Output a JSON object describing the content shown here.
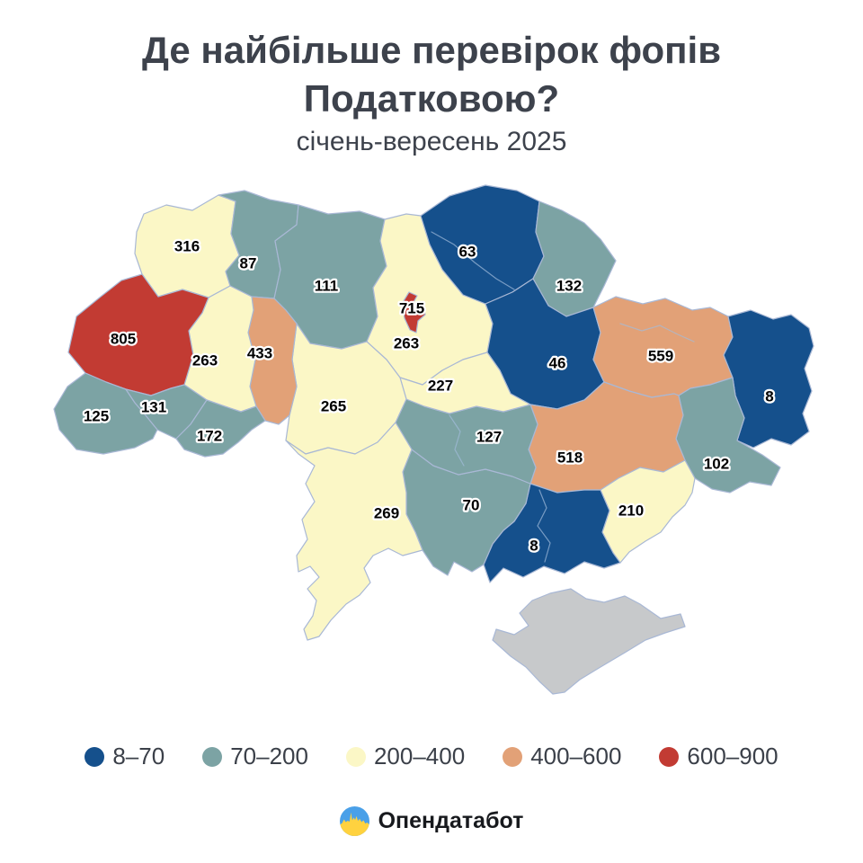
{
  "header": {
    "title_line1": "Де найбільше перевірок фопів",
    "title_line2": "Податковою?",
    "subtitle": "січень-вересень 2025"
  },
  "chart_data": {
    "type": "choropleth",
    "title": "Де найбільше перевірок фопів Податковою?",
    "subtitle": "січень-вересень 2025",
    "legend_position": "bottom",
    "bins": [
      {
        "label": "8–70",
        "color": "#15508C"
      },
      {
        "label": "70–200",
        "color": "#7CA3A4"
      },
      {
        "label": "200–400",
        "color": "#FBF7C6"
      },
      {
        "label": "400–600",
        "color": "#E2A177"
      },
      {
        "label": "600–900",
        "color": "#C23B33"
      }
    ],
    "no_data_color": "#C7C9CB",
    "regions": [
      {
        "id": "volyn",
        "value": 316,
        "bin": "200–400"
      },
      {
        "id": "rivne",
        "value": 87,
        "bin": "70–200"
      },
      {
        "id": "zhytomyr",
        "value": 111,
        "bin": "70–200"
      },
      {
        "id": "kyiv-oblast",
        "value": 263,
        "bin": "200–400"
      },
      {
        "id": "kyiv-city",
        "value": 715,
        "bin": "600–900"
      },
      {
        "id": "chernihiv",
        "value": 63,
        "bin": "8–70"
      },
      {
        "id": "sumy",
        "value": 132,
        "bin": "70–200"
      },
      {
        "id": "poltava",
        "value": 46,
        "bin": "8–70"
      },
      {
        "id": "kharkiv",
        "value": 559,
        "bin": "400–600"
      },
      {
        "id": "luhansk",
        "value": 8,
        "bin": "8–70"
      },
      {
        "id": "donetsk",
        "value": 102,
        "bin": "70–200"
      },
      {
        "id": "dnipropetrovsk",
        "value": 518,
        "bin": "400–600"
      },
      {
        "id": "zaporizhzhia",
        "value": 210,
        "bin": "200–400"
      },
      {
        "id": "kherson",
        "value": 8,
        "bin": "8–70"
      },
      {
        "id": "mykolaiv",
        "value": 70,
        "bin": "70–200"
      },
      {
        "id": "kirovohrad",
        "value": 127,
        "bin": "70–200"
      },
      {
        "id": "cherkasy",
        "value": 227,
        "bin": "200–400"
      },
      {
        "id": "vinnytsia",
        "value": 265,
        "bin": "200–400"
      },
      {
        "id": "khmelnytskyi",
        "value": 433,
        "bin": "400–600"
      },
      {
        "id": "ternopil",
        "value": 263,
        "bin": "200–400"
      },
      {
        "id": "lviv",
        "value": 805,
        "bin": "600–900"
      },
      {
        "id": "zakarpattia",
        "value": 125,
        "bin": "70–200"
      },
      {
        "id": "ivano-frankivsk",
        "value": 131,
        "bin": "70–200"
      },
      {
        "id": "chernivtsi",
        "value": 172,
        "bin": "70–200"
      },
      {
        "id": "odesa",
        "value": 269,
        "bin": "200–400"
      },
      {
        "id": "crimea",
        "value": null,
        "bin": null
      }
    ]
  },
  "footer": {
    "logo_text": "Опендатабот",
    "logo_icon": "opendatabot-flag-circle-icon",
    "logo_colors": {
      "blue": "#4AA0E8",
      "yellow": "#FFD23F"
    }
  }
}
